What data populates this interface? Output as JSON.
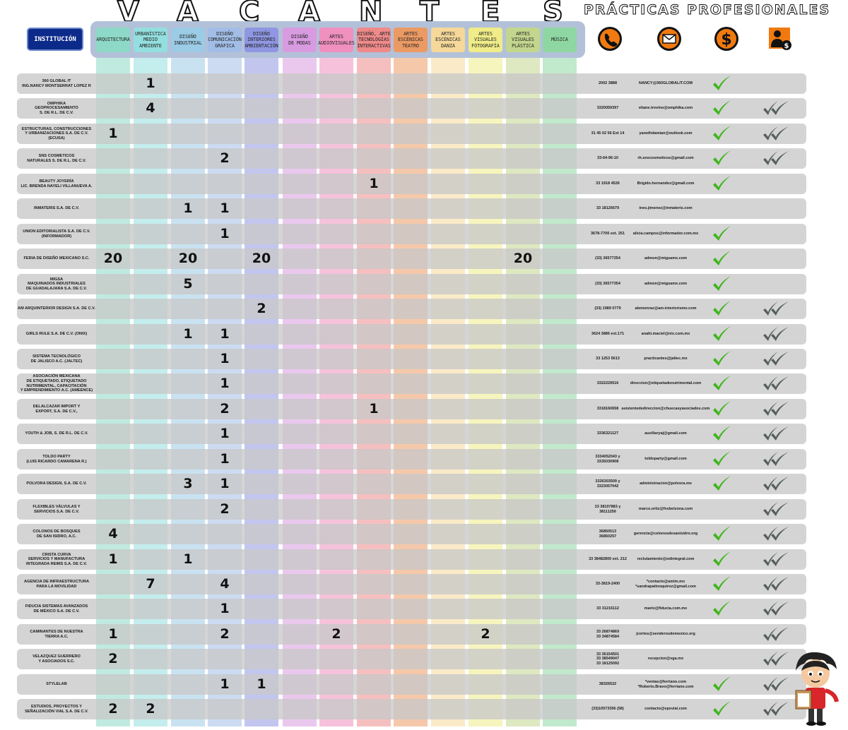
{
  "title_letters": [
    "V",
    "A",
    "C",
    "A",
    "N",
    "T",
    "E",
    "S"
  ],
  "subtitle": "PRÁCTICAS PROFESIONALES",
  "institution_header": "INSTITUCIÓN",
  "columns": [
    {
      "label": "ARQUITECTURA",
      "color": "#8dd8c6"
    },
    {
      "label": "URBANÍSTICA\nMEDIO\nAMBIENTE",
      "color": "#93dede"
    },
    {
      "label": "DISEÑO\nINDUSTRIAL",
      "color": "#9ccbe6"
    },
    {
      "label": "DISEÑO\nCOMUNICACIÓN\nGRÁFICA",
      "color": "#a2bde6"
    },
    {
      "label": "DISEÑO\nINTERIORES\nAMBIENTACIÓN",
      "color": "#8f97e2"
    },
    {
      "label": "DISEÑO\nDE MODAS",
      "color": "#d89be0"
    },
    {
      "label": "ARTES\nAUDIOVISUALES",
      "color": "#ef90be"
    },
    {
      "label": "DISEÑO, ARTE\nTECNOLOGÍAS\nINTERACTIVAS",
      "color": "#ef8a8a"
    },
    {
      "label": "ARTES\nESCÉNICAS\nTEATRO",
      "color": "#ec9a64"
    },
    {
      "label": "ARTES\nESCÉNICAS\nDANZA",
      "color": "#f5d89a"
    },
    {
      "label": "ARTES\nVISUALES\nFOTOGRAFÍA",
      "color": "#f0ec88"
    },
    {
      "label": "ARTES\nVISUALES\nPLÁSTICA",
      "color": "#c3d68e"
    },
    {
      "label": "MÚSICA",
      "color": "#8ed7a2"
    }
  ],
  "icons": [
    "phone-icon",
    "email-icon",
    "dollar-icon",
    "person-money-icon"
  ],
  "rows": [
    {
      "name": "360 GLOBAL IT\nING.NANCY MONTSERRAT LOPEZ R",
      "vacancies": [
        "",
        "1",
        "",
        "",
        "",
        "",
        "",
        "",
        "",
        "",
        "",
        "",
        ""
      ],
      "phone": "2002 3888",
      "email": "NANCY@360GLOBALIT.COM",
      "check": true,
      "double": false
    },
    {
      "name": "OMPHIKA\nGEOPROCESAMIENTO\nS. DE R.L. DE C.V.",
      "vacancies": [
        "",
        "4",
        "",
        "",
        "",
        "",
        "",
        "",
        "",
        "",
        "",
        "",
        ""
      ],
      "phone": "3320059397",
      "email": "eliane.trevino@omphika.com",
      "check": true,
      "double": true
    },
    {
      "name": "ESTRUCTURAS, CONSTRUCCIONES\nY URBANIZACIONES S.A. DE C.V.\n(ECUSA)",
      "vacancies": [
        "1",
        "",
        "",
        "",
        "",
        "",
        "",
        "",
        "",
        "",
        "",
        "",
        ""
      ],
      "phone": "31 45 02 56 Ext 14",
      "email": "yanethdamian@outlook.com",
      "check": true,
      "double": true
    },
    {
      "name": "SNS COSMETICOS\nNATURALES S. DE R.L. DE C.V.",
      "vacancies": [
        "",
        "",
        "",
        "2",
        "",
        "",
        "",
        "",
        "",
        "",
        "",
        "",
        ""
      ],
      "phone": "33-64-96-10",
      "email": "rh.snscosmeticos@gmail.com",
      "check": true,
      "double": true
    },
    {
      "name": "BEAUTY JOYERÍA\nLIC. BRENDA NAYELI VILLANUEVA A.",
      "vacancies": [
        "",
        "",
        "",
        "",
        "",
        "",
        "",
        "1",
        "",
        "",
        "",
        "",
        ""
      ],
      "phone": "33 1918 4526",
      "email": "Brigido.hernandez@gmail.com",
      "check": true,
      "double": false
    },
    {
      "name": "INMATERIS S.A. DE C.V.",
      "vacancies": [
        "",
        "",
        "1",
        "1",
        "",
        "",
        "",
        "",
        "",
        "",
        "",
        "",
        ""
      ],
      "phone": "33 18126679",
      "email": "ines.jimenez@inmateris.com",
      "check": false,
      "double": false
    },
    {
      "name": "UNION EDITORIALISTA S.A. DE C.V.\n(INFORMADOR)",
      "vacancies": [
        "",
        "",
        "",
        "1",
        "",
        "",
        "",
        "",
        "",
        "",
        "",
        "",
        ""
      ],
      "phone": "3678-7700 ext. 251",
      "email": "alicia.campos@informador.com.mx",
      "check": true,
      "double": false
    },
    {
      "name": "FERIA DE DISEÑO MEXICANO S.C.",
      "vacancies": [
        "20",
        "",
        "20",
        "",
        "20",
        "",
        "",
        "",
        "",
        "",
        "",
        "20",
        ""
      ],
      "phone": "(33) 36577354",
      "email": "admon@migsamx.com",
      "check": true,
      "double": false
    },
    {
      "name": "MIGSA\nMAQUINADOS INDUSTRIALES\nDE GUADALAJARA S.A. DE C.V.",
      "vacancies": [
        "",
        "",
        "5",
        "",
        "",
        "",
        "",
        "",
        "",
        "",
        "",
        "",
        ""
      ],
      "phone": "(33) 36577354",
      "email": "admon@migsamx.com",
      "check": true,
      "double": false
    },
    {
      "name": "AM ARQUINTERIOR DESIGN S.A. DE C.V.",
      "vacancies": [
        "",
        "",
        "",
        "",
        "2",
        "",
        "",
        "",
        "",
        "",
        "",
        "",
        ""
      ],
      "phone": "(33) 1989 0779",
      "email": "alemonraz@am-interiorismo.com",
      "check": true,
      "double": true
    },
    {
      "name": "GIRLS RULE S.A. DE C.V. (ONIX)",
      "vacancies": [
        "",
        "",
        "1",
        "1",
        "",
        "",
        "",
        "",
        "",
        "",
        "",
        "",
        ""
      ],
      "phone": "3624 3886 ext.171",
      "email": "anahi.maciel@nix.com.mx",
      "check": true,
      "double": true
    },
    {
      "name": "SISTEMA TECNOLÓGICO\nDE JALISCO A.C. (JALTEC)",
      "vacancies": [
        "",
        "",
        "",
        "1",
        "",
        "",
        "",
        "",
        "",
        "",
        "",
        "",
        ""
      ],
      "phone": "33 1253 5613",
      "email": "practicantes@jaltec.mx",
      "check": true,
      "double": true
    },
    {
      "name": "ASOCIACIÓN MEXICANA\nDE ETIQUETADO, ETIQUETADO\nNUTRIMENTAL, CAPACITACIÓN\nY EMPRENDIMIENTO A.C. (AMEENCE)",
      "vacancies": [
        "",
        "",
        "",
        "1",
        "",
        "",
        "",
        "",
        "",
        "",
        "",
        "",
        ""
      ],
      "phone": "3322229516",
      "email": "direccion@etiquetadonutrimental.com",
      "check": true,
      "double": true
    },
    {
      "name": "DELALCAZAR IMPORT Y\nEXPORT, S.A. DE C.V.,",
      "vacancies": [
        "",
        "",
        "",
        "2",
        "",
        "",
        "",
        "1",
        "",
        "",
        "",
        "",
        ""
      ],
      "phone": "3318160658",
      "email": "asistentededireccion@chuecasyasociados.com",
      "check": true,
      "double": true
    },
    {
      "name": "YOUTH & JOB, S. DE R.L. DE C.V.",
      "vacancies": [
        "",
        "",
        "",
        "1",
        "",
        "",
        "",
        "",
        "",
        "",
        "",
        "",
        ""
      ],
      "phone": "3336321127",
      "email": "auxiliaryaj@gmail.com",
      "check": true,
      "double": true
    },
    {
      "name": "TOLDO PARTY\n(LUIS RICARDO CAMARENA R.)",
      "vacancies": [
        "",
        "",
        "",
        "1",
        "",
        "",
        "",
        "",
        "",
        "",
        "",
        "",
        ""
      ],
      "phone": "3334052043 y\n3335030908",
      "email": "toldoparty@gmail.com",
      "check": true,
      "double": true
    },
    {
      "name": "POLVORA DESIGN, S.A. DE C.V.",
      "vacancies": [
        "",
        "",
        "3",
        "1",
        "",
        "",
        "",
        "",
        "",
        "",
        "",
        "",
        ""
      ],
      "phone": "3336303509 y\n3323057042",
      "email": "administracion@polvora.mx",
      "check": true,
      "double": true
    },
    {
      "name": "FLEXIBLES VÁLVULAS Y\nSERVICIOS S.A. DE C.V.",
      "vacancies": [
        "",
        "",
        "",
        "2",
        "",
        "",
        "",
        "",
        "",
        "",
        "",
        "",
        ""
      ],
      "phone": "33 38107883 y\n38111256",
      "email": "marco.ortiz@fvsbelzona.com",
      "check": false,
      "double": true
    },
    {
      "name": "COLONOS DE BOSQUES\nDE SAN ISIDRO, A.C.",
      "vacancies": [
        "4",
        "",
        "",
        "",
        "",
        "",
        "",
        "",
        "",
        "",
        "",
        "",
        ""
      ],
      "phone": "36850513\n36850257",
      "email": "gerencia@colonosdesanisidro.org",
      "check": true,
      "double": true
    },
    {
      "name": "CRISTA CURVA\nSERVICIOS Y MANUFACTURA\nINTEGRADA REIMS S.A. DE C.V.",
      "vacancies": [
        "1",
        "",
        "1",
        "",
        "",
        "",
        "",
        "",
        "",
        "",
        "",
        "",
        ""
      ],
      "phone": "33 38482800 ext. 212",
      "email": "reclutamiento@odintegral.com",
      "check": true,
      "double": true
    },
    {
      "name": "AGENCIA DE INFRAESTRUCTURA\nPARA LA MOVILIDAD",
      "vacancies": [
        "",
        "7",
        "",
        "4",
        "",
        "",
        "",
        "",
        "",
        "",
        "",
        "",
        ""
      ],
      "phone": "33-3819-2400",
      "email": "*contacto@amim.mx\n*sandrapatinoquiroz@gmail.com",
      "check": true,
      "double": true
    },
    {
      "name": "FIDUCIA SISTEMAS AVANZADOS\nDE MÉXICO S.A. DE C.V.",
      "vacancies": [
        "",
        "",
        "",
        "1",
        "",
        "",
        "",
        "",
        "",
        "",
        "",
        "",
        ""
      ],
      "phone": "33 31216112",
      "email": "mario@fiducia.com.mx",
      "check": true,
      "double": true
    },
    {
      "name": "CAMINANTES DE NUESTRA\nTIERRA A.C.",
      "vacancies": [
        "1",
        "",
        "",
        "2",
        "",
        "",
        "2",
        "",
        "",
        "",
        "2",
        "",
        ""
      ],
      "phone": "33 26874869\n33 34874584",
      "email": "jcortes@senderosdemexico.org",
      "check": false,
      "double": true
    },
    {
      "name": "VELAZQUEZ GUERRERO\nY ASOCIADOS S.C.",
      "vacancies": [
        "2",
        "",
        "",
        "",
        "",
        "",
        "",
        "",
        "",
        "",
        "",
        "",
        ""
      ],
      "phone": "33 36154501\n33 38549047\n33 18125092",
      "email": "recepcion@vga.mx",
      "check": false,
      "double": true
    },
    {
      "name": "STYLELAB",
      "vacancies": [
        "",
        "",
        "",
        "1",
        "1",
        "",
        "",
        "",
        "",
        "",
        "",
        "",
        ""
      ],
      "phone": "38326522",
      "email": "*ventas@ferriano.com\n*Roberto.Bravo@ferriano.com",
      "check": true,
      "double": true
    },
    {
      "name": "ESTUDIOS, PROYECTOS Y\nSEÑALIZACIÓN VIAL S.A. DE C.V.",
      "vacancies": [
        "2",
        "2",
        "",
        "",
        "",
        "",
        "",
        "",
        "",
        "",
        "",
        "",
        ""
      ],
      "phone": "(33)10573356 (58)",
      "email": "contacto@epsvial.com",
      "check": true,
      "double": true
    }
  ],
  "colors": {
    "check": "#3fb51d",
    "double_check": "#555f5a",
    "institution_button": "#0c2a8a",
    "icon_orange": "#f07a10"
  }
}
